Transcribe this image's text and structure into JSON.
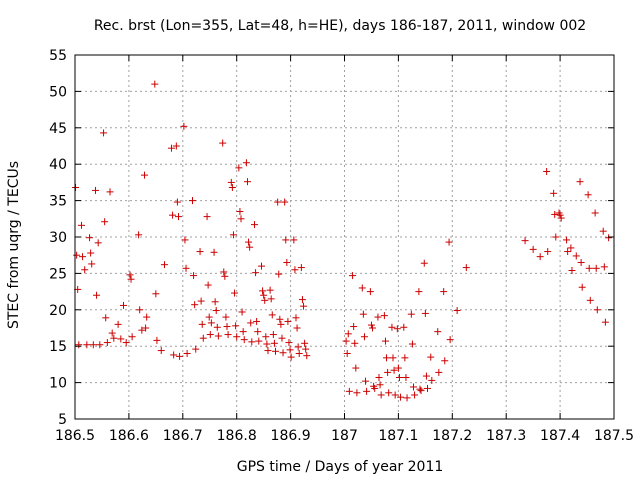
{
  "chart_data": {
    "type": "scatter",
    "title": "Rec. brst (Lon=355, Lat=48, h=HE), days 186-187, 2011, window 002",
    "xlabel": "GPS time / Days of year 2011",
    "ylabel": "STEC from uqrg / TECUs",
    "xlim": [
      186.5,
      187.5
    ],
    "ylim": [
      5,
      55
    ],
    "xticks": [
      "186.5",
      "186.6",
      "186.7",
      "186.8",
      "186.9",
      "187",
      "187.1",
      "187.2",
      "187.3",
      "187.4",
      "187.5"
    ],
    "yticks": [
      "5",
      "10",
      "15",
      "20",
      "25",
      "30",
      "35",
      "40",
      "45",
      "50",
      "55"
    ],
    "grid": true,
    "marker": "+",
    "marker_color": "#cc0000",
    "series": [
      {
        "name": "STEC",
        "points": [
          [
            186.501,
            36.8
          ],
          [
            186.503,
            27.5
          ],
          [
            186.505,
            22.8
          ],
          [
            186.507,
            15.2
          ],
          [
            186.512,
            31.6
          ],
          [
            186.514,
            27.3
          ],
          [
            186.518,
            25.5
          ],
          [
            186.522,
            15.2
          ],
          [
            186.527,
            29.9
          ],
          [
            186.529,
            27.8
          ],
          [
            186.531,
            26.3
          ],
          [
            186.534,
            15.2
          ],
          [
            186.538,
            36.4
          ],
          [
            186.54,
            22.0
          ],
          [
            186.543,
            29.2
          ],
          [
            186.546,
            15.2
          ],
          [
            186.553,
            44.3
          ],
          [
            186.555,
            32.1
          ],
          [
            186.557,
            18.9
          ],
          [
            186.56,
            15.5
          ],
          [
            186.565,
            36.2
          ],
          [
            186.569,
            16.8
          ],
          [
            186.572,
            16.1
          ],
          [
            186.58,
            18.0
          ],
          [
            186.585,
            16.0
          ],
          [
            186.59,
            20.6
          ],
          [
            186.595,
            15.5
          ],
          [
            186.602,
            24.8
          ],
          [
            186.604,
            24.2
          ],
          [
            186.606,
            16.3
          ],
          [
            186.618,
            30.3
          ],
          [
            186.62,
            20.0
          ],
          [
            186.624,
            17.2
          ],
          [
            186.629,
            38.5
          ],
          [
            186.631,
            17.5
          ],
          [
            186.633,
            19.0
          ],
          [
            186.648,
            51.0
          ],
          [
            186.65,
            22.2
          ],
          [
            186.652,
            15.8
          ],
          [
            186.66,
            14.4
          ],
          [
            186.666,
            26.2
          ],
          [
            186.679,
            42.2
          ],
          [
            186.681,
            33.0
          ],
          [
            186.683,
            13.8
          ],
          [
            186.688,
            42.5
          ],
          [
            186.69,
            34.8
          ],
          [
            186.692,
            32.8
          ],
          [
            186.694,
            13.6
          ],
          [
            186.702,
            45.2
          ],
          [
            186.704,
            29.6
          ],
          [
            186.706,
            25.7
          ],
          [
            186.708,
            14.0
          ],
          [
            186.718,
            35.0
          ],
          [
            186.72,
            24.7
          ],
          [
            186.722,
            20.7
          ],
          [
            186.724,
            14.6
          ],
          [
            186.732,
            28.0
          ],
          [
            186.734,
            21.2
          ],
          [
            186.736,
            18.0
          ],
          [
            186.738,
            16.1
          ],
          [
            186.745,
            32.8
          ],
          [
            186.747,
            23.4
          ],
          [
            186.749,
            19.0
          ],
          [
            186.751,
            16.6
          ],
          [
            186.753,
            18.2
          ],
          [
            186.758,
            27.9
          ],
          [
            186.76,
            21.1
          ],
          [
            186.762,
            19.9
          ],
          [
            186.764,
            17.6
          ],
          [
            186.766,
            16.4
          ],
          [
            186.774,
            42.9
          ],
          [
            186.776,
            25.2
          ],
          [
            186.778,
            24.6
          ],
          [
            186.78,
            19.0
          ],
          [
            186.782,
            17.7
          ],
          [
            186.784,
            16.6
          ],
          [
            186.79,
            37.5
          ],
          [
            186.792,
            36.8
          ],
          [
            186.794,
            30.3
          ],
          [
            186.796,
            22.3
          ],
          [
            186.798,
            17.8
          ],
          [
            186.8,
            16.3
          ],
          [
            186.804,
            39.5
          ],
          [
            186.806,
            33.5
          ],
          [
            186.808,
            32.5
          ],
          [
            186.81,
            19.7
          ],
          [
            186.812,
            17.0
          ],
          [
            186.814,
            15.9
          ],
          [
            186.818,
            40.2
          ],
          [
            186.82,
            37.6
          ],
          [
            186.822,
            29.3
          ],
          [
            186.824,
            28.6
          ],
          [
            186.826,
            18.2
          ],
          [
            186.828,
            15.6
          ],
          [
            186.833,
            31.7
          ],
          [
            186.835,
            25.1
          ],
          [
            186.837,
            18.4
          ],
          [
            186.839,
            17.0
          ],
          [
            186.841,
            15.7
          ],
          [
            186.846,
            26.0
          ],
          [
            186.848,
            22.6
          ],
          [
            186.85,
            22.0
          ],
          [
            186.852,
            21.3
          ],
          [
            186.854,
            16.3
          ],
          [
            186.856,
            15.3
          ],
          [
            186.858,
            14.4
          ],
          [
            186.862,
            22.7
          ],
          [
            186.864,
            21.5
          ],
          [
            186.866,
            19.3
          ],
          [
            186.868,
            16.6
          ],
          [
            186.87,
            15.4
          ],
          [
            186.872,
            14.3
          ],
          [
            186.876,
            34.8
          ],
          [
            186.878,
            24.9
          ],
          [
            186.88,
            18.7
          ],
          [
            186.882,
            18.0
          ],
          [
            186.884,
            16.1
          ],
          [
            186.886,
            14.1
          ],
          [
            186.889,
            34.8
          ],
          [
            186.891,
            29.6
          ],
          [
            186.893,
            26.5
          ],
          [
            186.895,
            18.4
          ],
          [
            186.897,
            15.5
          ],
          [
            186.899,
            14.5
          ],
          [
            186.901,
            13.5
          ],
          [
            186.906,
            29.6
          ],
          [
            186.908,
            25.5
          ],
          [
            186.91,
            18.9
          ],
          [
            186.912,
            17.5
          ],
          [
            186.914,
            14.9
          ],
          [
            186.916,
            14.0
          ],
          [
            186.92,
            25.8
          ],
          [
            186.922,
            21.4
          ],
          [
            186.924,
            20.5
          ],
          [
            186.926,
            15.4
          ],
          [
            186.928,
            14.6
          ],
          [
            186.93,
            13.7
          ],
          [
            187.003,
            15.7
          ],
          [
            187.005,
            14.0
          ],
          [
            187.007,
            16.7
          ],
          [
            187.009,
            8.8
          ],
          [
            187.015,
            24.7
          ],
          [
            187.017,
            17.7
          ],
          [
            187.019,
            15.4
          ],
          [
            187.021,
            12.0
          ],
          [
            187.023,
            8.6
          ],
          [
            187.033,
            23.0
          ],
          [
            187.035,
            19.4
          ],
          [
            187.037,
            16.3
          ],
          [
            187.039,
            10.2
          ],
          [
            187.041,
            8.8
          ],
          [
            187.048,
            22.5
          ],
          [
            187.05,
            17.9
          ],
          [
            187.052,
            17.5
          ],
          [
            187.054,
            9.5
          ],
          [
            187.056,
            9.2
          ],
          [
            187.062,
            19.0
          ],
          [
            187.064,
            10.7
          ],
          [
            187.066,
            9.7
          ],
          [
            187.068,
            8.3
          ],
          [
            187.074,
            19.2
          ],
          [
            187.076,
            15.7
          ],
          [
            187.078,
            13.4
          ],
          [
            187.08,
            11.4
          ],
          [
            187.082,
            8.6
          ],
          [
            187.088,
            17.6
          ],
          [
            187.09,
            13.4
          ],
          [
            187.092,
            11.7
          ],
          [
            187.094,
            8.3
          ],
          [
            187.098,
            17.4
          ],
          [
            187.1,
            12.0
          ],
          [
            187.102,
            10.7
          ],
          [
            187.104,
            8.0
          ],
          [
            187.11,
            17.6
          ],
          [
            187.112,
            13.4
          ],
          [
            187.114,
            10.7
          ],
          [
            187.116,
            7.9
          ],
          [
            187.124,
            19.4
          ],
          [
            187.126,
            15.3
          ],
          [
            187.128,
            9.4
          ],
          [
            187.13,
            8.3
          ],
          [
            187.138,
            22.5
          ],
          [
            187.14,
            9.1
          ],
          [
            187.142,
            8.9
          ],
          [
            187.148,
            26.4
          ],
          [
            187.15,
            19.5
          ],
          [
            187.152,
            10.9
          ],
          [
            187.154,
            9.2
          ],
          [
            187.16,
            13.5
          ],
          [
            187.162,
            10.3
          ],
          [
            187.173,
            17.0
          ],
          [
            187.175,
            11.4
          ],
          [
            187.184,
            22.5
          ],
          [
            187.186,
            13.0
          ],
          [
            187.194,
            29.3
          ],
          [
            187.196,
            15.9
          ],
          [
            187.209,
            19.9
          ],
          [
            187.226,
            25.8
          ],
          [
            187.335,
            29.5
          ],
          [
            187.35,
            28.3
          ],
          [
            187.363,
            27.3
          ],
          [
            187.375,
            39.0
          ],
          [
            187.377,
            28.0
          ],
          [
            187.388,
            36.0
          ],
          [
            187.39,
            33.1
          ],
          [
            187.392,
            30.0
          ],
          [
            187.398,
            33.3
          ],
          [
            187.4,
            33.0
          ],
          [
            187.402,
            32.6
          ],
          [
            187.412,
            29.6
          ],
          [
            187.414,
            28.0
          ],
          [
            187.42,
            28.5
          ],
          [
            187.422,
            25.4
          ],
          [
            187.43,
            27.4
          ],
          [
            187.437,
            37.6
          ],
          [
            187.439,
            26.5
          ],
          [
            187.441,
            23.1
          ],
          [
            187.452,
            35.8
          ],
          [
            187.454,
            25.7
          ],
          [
            187.456,
            21.3
          ],
          [
            187.465,
            33.3
          ],
          [
            187.467,
            25.7
          ],
          [
            187.469,
            20.0
          ],
          [
            187.48,
            30.8
          ],
          [
            187.482,
            25.9
          ],
          [
            187.484,
            18.3
          ],
          [
            187.49,
            29.9
          ]
        ]
      }
    ]
  }
}
